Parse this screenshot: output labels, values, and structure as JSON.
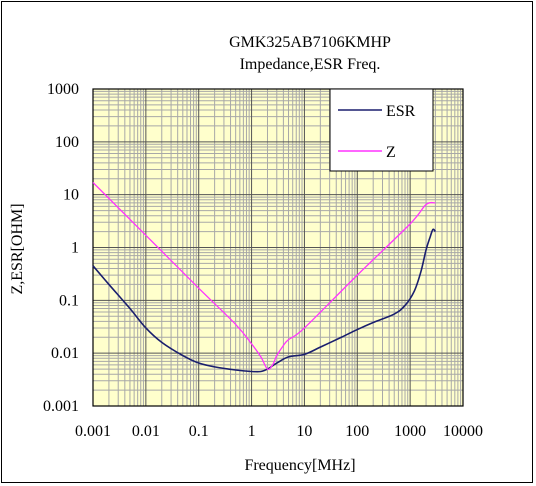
{
  "chart_data": {
    "type": "line",
    "title": "GMK325AB7106KMHP",
    "subtitle": "Impedance,ESR Freq.",
    "xlabel": "Frequency[MHz]",
    "ylabel": "Z,ESR[OHM]",
    "x_scale": "log",
    "y_scale": "log",
    "xlim": [
      0.001,
      10000
    ],
    "ylim": [
      0.001,
      1000
    ],
    "x_tick_labels": [
      "0.001",
      "0.01",
      "0.1",
      "1",
      "10",
      "100",
      "1000",
      "10000"
    ],
    "y_tick_labels": [
      "1000",
      "100",
      "10",
      "1",
      "0.1",
      "0.01",
      "0.001"
    ],
    "grid": true,
    "legend_position": "top-right",
    "series": [
      {
        "name": "ESR",
        "color": "#1a1f6e",
        "x": [
          0.001,
          0.002,
          0.005,
          0.01,
          0.02,
          0.05,
          0.1,
          0.2,
          0.5,
          1,
          1.5,
          2,
          3,
          5,
          10,
          20,
          50,
          100,
          200,
          500,
          800,
          1200,
          1600,
          2000,
          2400,
          2700,
          3000
        ],
        "y": [
          0.45,
          0.2,
          0.07,
          0.03,
          0.016,
          0.009,
          0.0065,
          0.0055,
          0.0048,
          0.0045,
          0.0045,
          0.005,
          0.0065,
          0.0085,
          0.0095,
          0.013,
          0.02,
          0.028,
          0.038,
          0.055,
          0.08,
          0.15,
          0.35,
          0.9,
          1.6,
          2.2,
          2.0
        ]
      },
      {
        "name": "Z",
        "color": "#ff33ff",
        "x": [
          0.001,
          0.01,
          0.1,
          0.5,
          1,
          1.5,
          2,
          2.5,
          3,
          4,
          5,
          10,
          100,
          1000,
          2000,
          3000
        ],
        "y": [
          17,
          1.7,
          0.17,
          0.035,
          0.015,
          0.0085,
          0.005,
          0.006,
          0.009,
          0.014,
          0.018,
          0.03,
          0.3,
          2.8,
          6.5,
          7
        ]
      }
    ]
  }
}
